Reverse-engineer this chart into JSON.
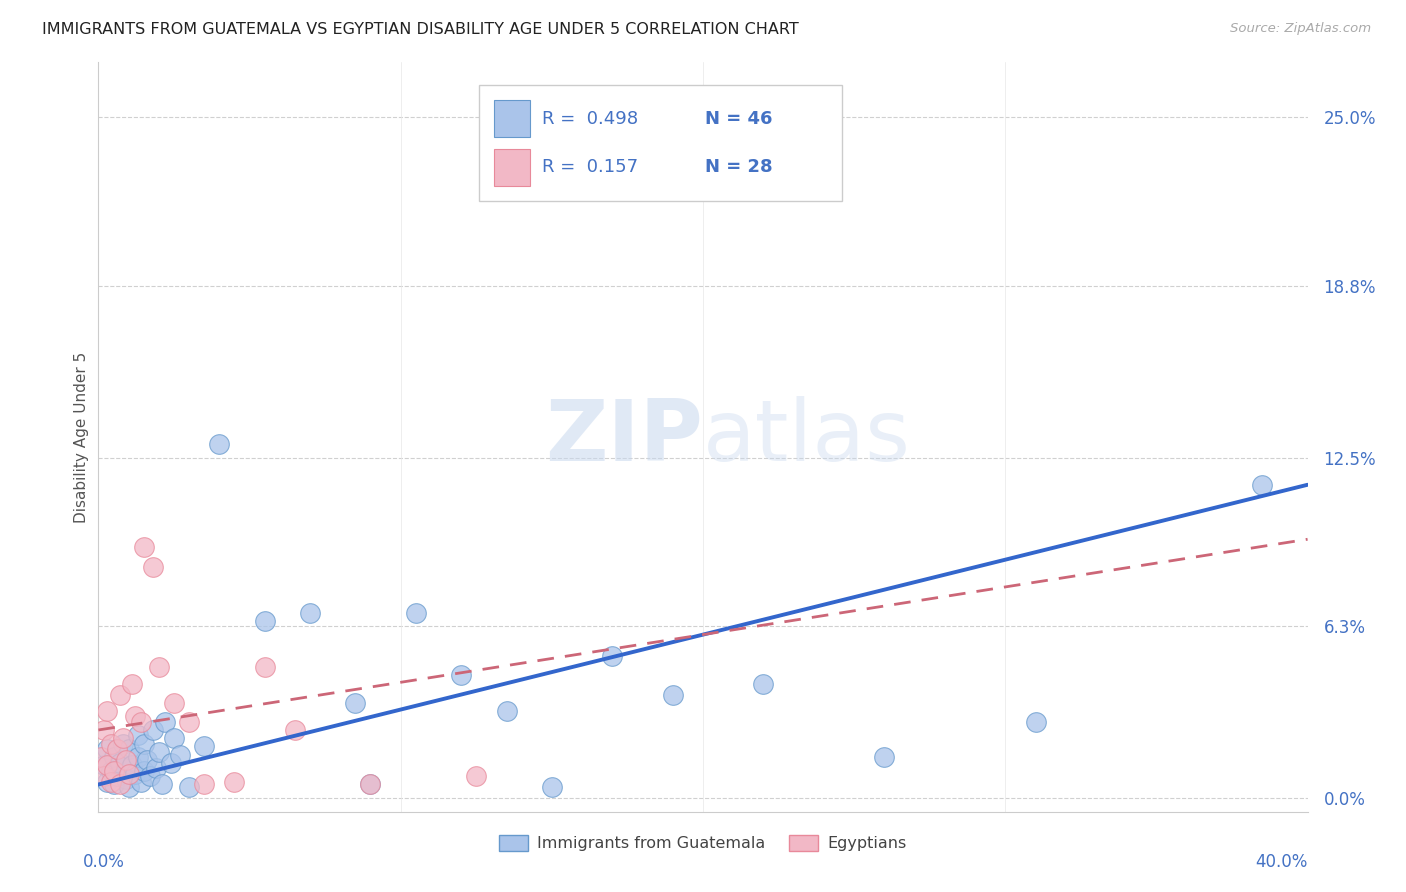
{
  "title": "IMMIGRANTS FROM GUATEMALA VS EGYPTIAN DISABILITY AGE UNDER 5 CORRELATION CHART",
  "source": "Source: ZipAtlas.com",
  "ylabel": "Disability Age Under 5",
  "ytick_values": [
    0.0,
    6.3,
    12.5,
    18.8,
    25.0
  ],
  "xlim": [
    0.0,
    40.0
  ],
  "ylim": [
    -0.5,
    27.0
  ],
  "legend_r1": "0.498",
  "legend_n1": "46",
  "legend_r2": "0.157",
  "legend_n2": "28",
  "legend_label1": "Immigrants from Guatemala",
  "legend_label2": "Egyptians",
  "color_blue_fill": "#aac4ea",
  "color_pink_fill": "#f2b8c6",
  "color_blue_edge": "#6699cc",
  "color_pink_edge": "#e8899a",
  "color_blue_line": "#3366cc",
  "color_pink_line": "#cc6677",
  "watermark_zip": "ZIP",
  "watermark_atlas": "atlas",
  "scatter_blue_x": [
    0.2,
    0.3,
    0.3,
    0.4,
    0.5,
    0.5,
    0.6,
    0.7,
    0.8,
    0.9,
    1.0,
    1.0,
    1.1,
    1.2,
    1.3,
    1.3,
    1.4,
    1.5,
    1.5,
    1.6,
    1.7,
    1.8,
    1.9,
    2.0,
    2.1,
    2.2,
    2.4,
    2.5,
    2.7,
    3.0,
    3.5,
    4.0,
    5.5,
    7.0,
    8.5,
    9.0,
    10.5,
    12.0,
    13.5,
    15.0,
    17.0,
    19.0,
    22.0,
    26.0,
    31.0,
    38.5
  ],
  "scatter_blue_y": [
    1.2,
    0.6,
    1.8,
    1.0,
    0.5,
    1.5,
    0.8,
    1.3,
    2.0,
    0.7,
    0.4,
    1.8,
    1.2,
    0.9,
    1.5,
    2.3,
    0.6,
    1.0,
    2.0,
    1.4,
    0.8,
    2.5,
    1.1,
    1.7,
    0.5,
    2.8,
    1.3,
    2.2,
    1.6,
    0.4,
    1.9,
    13.0,
    6.5,
    6.8,
    3.5,
    0.5,
    6.8,
    4.5,
    3.2,
    0.4,
    5.2,
    3.8,
    4.2,
    1.5,
    2.8,
    11.5
  ],
  "scatter_pink_x": [
    0.1,
    0.2,
    0.2,
    0.3,
    0.3,
    0.4,
    0.4,
    0.5,
    0.6,
    0.7,
    0.7,
    0.8,
    0.9,
    1.0,
    1.1,
    1.2,
    1.4,
    1.5,
    1.8,
    2.0,
    2.5,
    3.0,
    3.5,
    4.5,
    5.5,
    6.5,
    9.0,
    12.5
  ],
  "scatter_pink_y": [
    1.5,
    0.8,
    2.5,
    1.2,
    3.2,
    0.6,
    2.0,
    1.0,
    1.8,
    0.5,
    3.8,
    2.2,
    1.4,
    0.9,
    4.2,
    3.0,
    2.8,
    9.2,
    8.5,
    4.8,
    3.5,
    2.8,
    0.5,
    0.6,
    4.8,
    2.5,
    0.5,
    0.8
  ],
  "blue_line_x0": 0.0,
  "blue_line_x1": 40.0,
  "blue_line_y0": 0.5,
  "blue_line_y1": 11.5,
  "pink_line_x0": 0.0,
  "pink_line_x1": 40.0,
  "pink_line_y0": 2.5,
  "pink_line_y1": 9.5
}
